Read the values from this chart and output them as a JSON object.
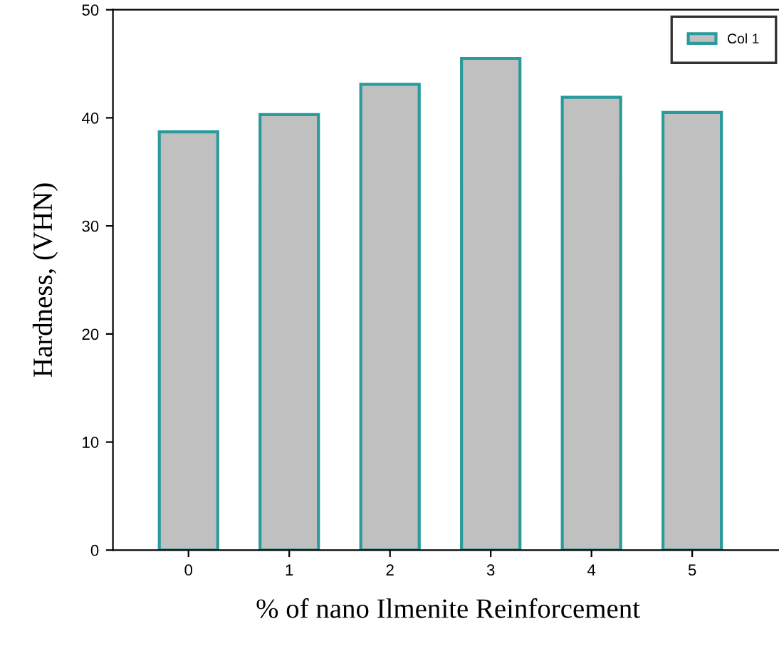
{
  "chart_data": {
    "type": "bar",
    "xlabel": "% of nano Ilmenite Reinforcement",
    "ylabel": "Hardness, (VHN)",
    "categories": [
      "0",
      "1",
      "2",
      "3",
      "4",
      "5"
    ],
    "series": [
      {
        "name": "Col 1",
        "color": "#c0c0c0",
        "values": [
          38.7,
          40.3,
          43.1,
          45.5,
          41.9,
          40.5
        ]
      }
    ],
    "ylim": [
      0,
      50
    ],
    "yticks": [
      0,
      10,
      20,
      30,
      40,
      50
    ],
    "grid": false,
    "legend": "top right"
  }
}
